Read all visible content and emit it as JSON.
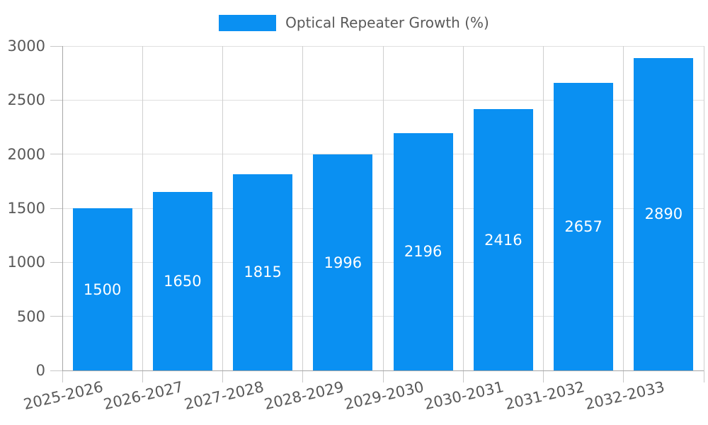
{
  "chart_data": {
    "type": "bar",
    "title": "Optical Repeater Growth (%)",
    "legend": {
      "label": "Optical Repeater Growth (%)",
      "position": "top-center"
    },
    "categories": [
      "2025-2026",
      "2026-2027",
      "2027-2028",
      "2028-2029",
      "2029-2030",
      "2030-2031",
      "2031-2032",
      "2032-2033"
    ],
    "values": [
      1500,
      1650,
      1815,
      1996,
      2196,
      2416,
      2657,
      2890
    ],
    "xlabel": "",
    "ylabel": "",
    "ylim": [
      0,
      3000
    ],
    "yticks": [
      0,
      500,
      1000,
      1500,
      2000,
      2500,
      3000
    ],
    "grid": true,
    "value_labels_position": "inside-center",
    "colors": {
      "bar": "#0a90f2",
      "value_label": "#ffffff",
      "tick_label": "#595959",
      "legend_text": "#595959",
      "axis_line": "#a6a6a6",
      "grid_h": "#e0e0e0",
      "grid_v": "#cfcfcf",
      "tick_mark": "#c8c8c8",
      "background": "#ffffff"
    }
  }
}
